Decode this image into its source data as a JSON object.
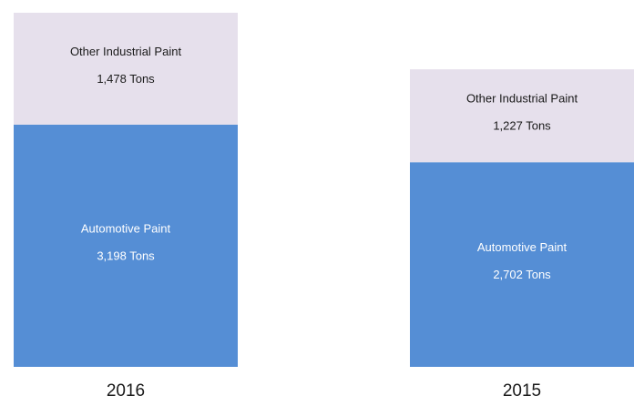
{
  "chart_data": {
    "type": "stacked_bar",
    "categories": [
      "2016",
      "2015"
    ],
    "series": [
      {
        "name": "Automotive Paint",
        "color": "#558ed5",
        "values": [
          3198,
          2702
        ],
        "value_labels": [
          "3,198 Tons",
          "2,702 Tons"
        ]
      },
      {
        "name": "Other Industrial Paint",
        "color": "#e6e0ec",
        "values": [
          1478,
          1227
        ],
        "value_labels": [
          "1,478 Tons",
          "1,227 Tons"
        ]
      }
    ]
  }
}
